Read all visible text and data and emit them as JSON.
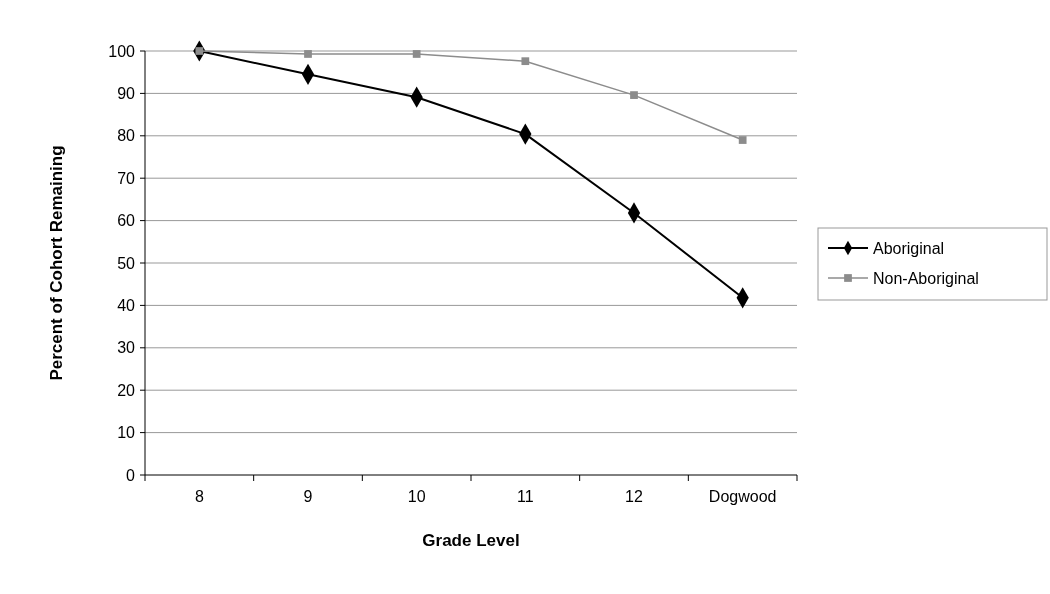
{
  "chart_data": {
    "type": "line",
    "xlabel": "Grade Level",
    "ylabel": "Percent of Cohort Remaining",
    "categories": [
      "8",
      "9",
      "10",
      "11",
      "12",
      "Dogwood"
    ],
    "series": [
      {
        "name": "Aboriginal",
        "color": "#000000",
        "marker": "diamond",
        "values": [
          100,
          94.5,
          89.1,
          80.4,
          61.8,
          41.8
        ]
      },
      {
        "name": "Non-Aboriginal",
        "color": "#8c8c8c",
        "marker": "square",
        "values": [
          100,
          99.3,
          99.3,
          97.6,
          89.6,
          79
        ]
      }
    ],
    "ylim": [
      0,
      100
    ],
    "yticks": [
      0,
      10,
      20,
      30,
      40,
      50,
      60,
      70,
      80,
      90,
      100
    ],
    "grid": "y",
    "legend": "right",
    "line_style": "solid"
  }
}
